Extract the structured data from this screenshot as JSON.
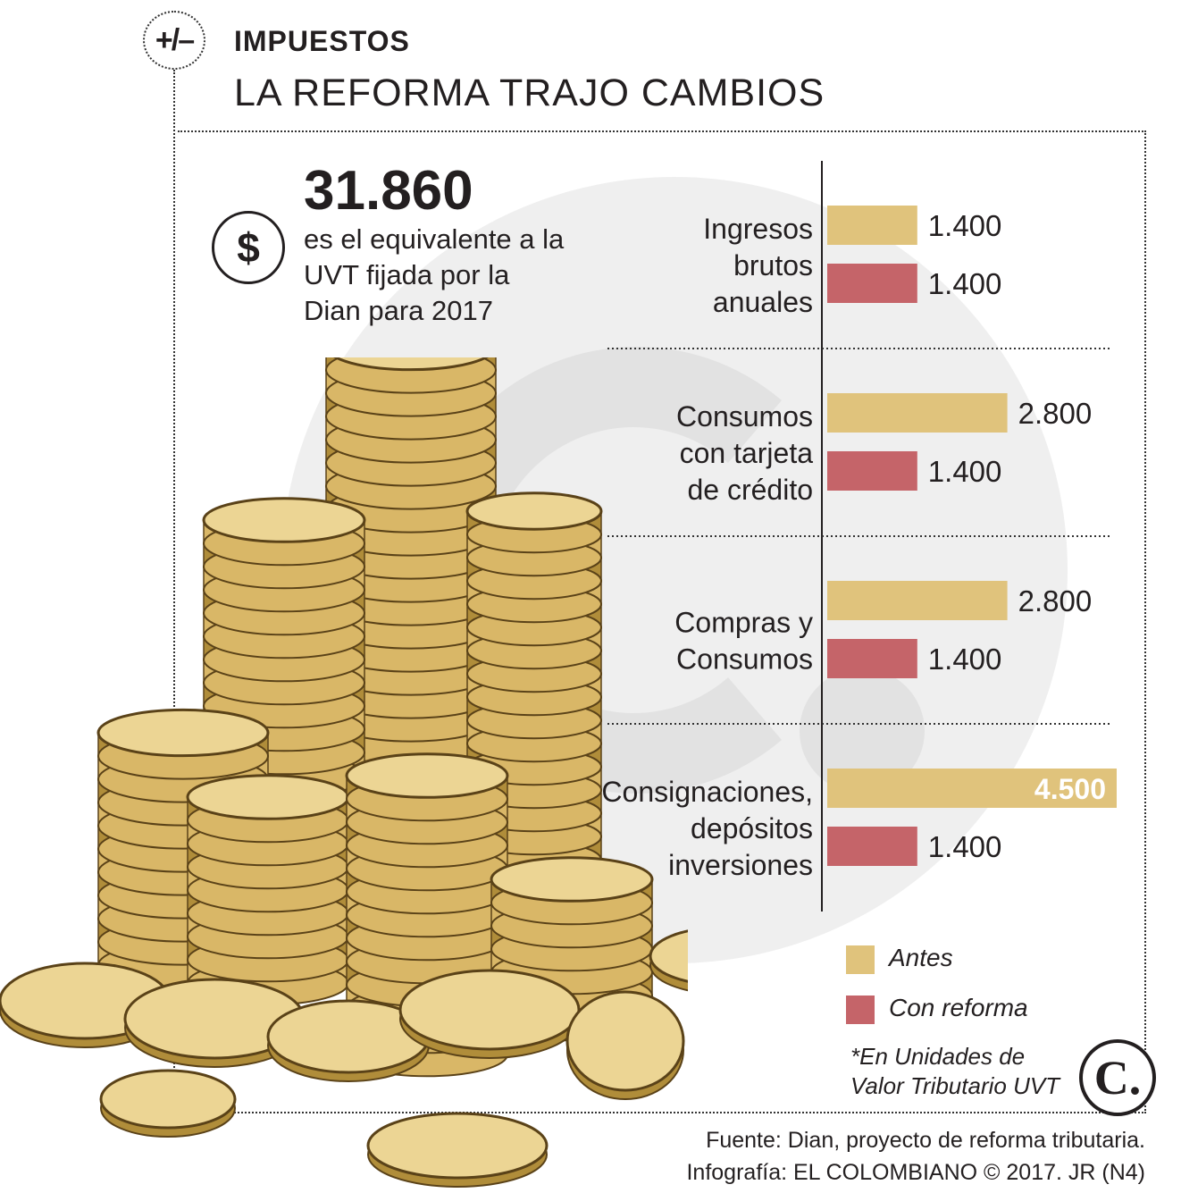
{
  "header": {
    "section_icon": "+/–",
    "section": "IMPUESTOS",
    "headline": "LA REFORMA TRAJO CAMBIOS"
  },
  "highlight": {
    "value": "31.860",
    "icon": "dollar-icon",
    "text": "es el equivalente a la UVT fijada por la Dian para 2017"
  },
  "colors": {
    "antes": "#e0c37c",
    "con_reforma": "#c56469",
    "text": "#231f20",
    "watermark": "#ededed"
  },
  "chart_data": {
    "type": "bar",
    "orientation": "horizontal",
    "categories": [
      [
        "Ingresos",
        "brutos",
        "anuales"
      ],
      [
        "Consumos",
        "con tarjeta",
        "de crédito"
      ],
      [
        "Compras y",
        "Consumos"
      ],
      [
        "Consignaciones,",
        "depósitos",
        "inversiones"
      ]
    ],
    "series": [
      {
        "name": "Antes",
        "values": [
          1400,
          2800,
          2800,
          4500
        ],
        "labels": [
          "1.400",
          "2.800",
          "2.800",
          "4.500"
        ]
      },
      {
        "name": "Con reforma",
        "values": [
          1400,
          1400,
          1400,
          1400
        ],
        "labels": [
          "1.400",
          "1.400",
          "1.400",
          "1.400"
        ]
      }
    ],
    "xlim": [
      0,
      4500
    ],
    "grid": false,
    "legend": "bottom-right"
  },
  "legend": {
    "antes": "Antes",
    "con_reforma": "Con reforma"
  },
  "note": "*En Unidades de Valor Tributario UVT",
  "logo": "C.",
  "footer": {
    "source": "Fuente: Dian, proyecto de reforma tributaria.",
    "credit": "Infografía: EL COLOMBIANO © 2017. JR (N4)"
  }
}
